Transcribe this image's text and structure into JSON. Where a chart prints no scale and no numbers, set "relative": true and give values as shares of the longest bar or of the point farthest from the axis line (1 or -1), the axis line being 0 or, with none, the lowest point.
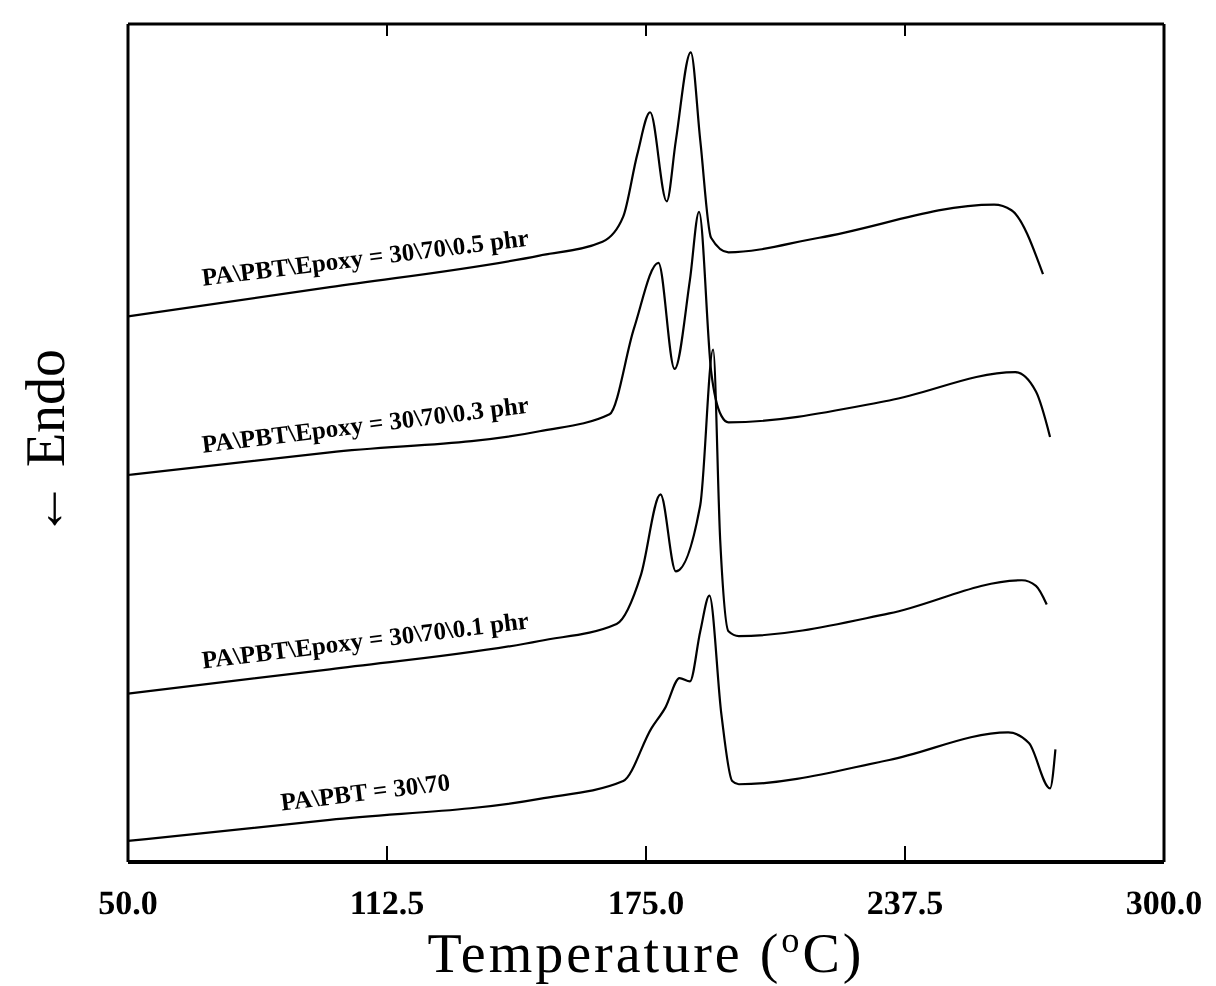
{
  "chart_data": {
    "type": "line",
    "relative": true,
    "xlabel": "Temperature ($^{o}$C)",
    "ylabel": "← Endo",
    "xlim": [
      50,
      300
    ],
    "xticks": [
      {
        "value": 50,
        "label": "50.0"
      },
      {
        "value": 112.5,
        "label": "112.5"
      },
      {
        "value": 175,
        "label": "175.0"
      },
      {
        "value": 237.5,
        "label": "237.5"
      },
      {
        "value": 300,
        "label": "300.0"
      }
    ],
    "grid": false,
    "marker": "none",
    "line_style": "solid",
    "series": [
      {
        "name": "PA\\PBT\\Epoxy = 30\\70\\0.5 phr",
        "color": "#000000",
        "x": [
          50,
          98.7,
          149.3,
          164.5,
          169.5,
          172.9,
          176,
          180,
          182.2,
          185.8,
          188.1,
          190.7,
          194.9,
          216.8,
          259,
          263.2,
          270.8
        ],
        "values": [
          0.674,
          0.71,
          0.749,
          0.766,
          0.797,
          0.874,
          0.926,
          0.816,
          0.891,
          1.0,
          0.891,
          0.771,
          0.753,
          0.771,
          0.812,
          0.805,
          0.726
        ]
      },
      {
        "name": "PA\\PBT\\Epoxy = 30\\70\\0.3 phr",
        "color": "#000000",
        "x": [
          50,
          98.7,
          149.3,
          166.2,
          172.1,
          178,
          181.9,
          185.6,
          187.8,
          190.7,
          193.2,
          194.9,
          233.7,
          264.1,
          269.1,
          272.5
        ],
        "values": [
          0.478,
          0.506,
          0.532,
          0.553,
          0.659,
          0.74,
          0.609,
          0.719,
          0.803,
          0.607,
          0.551,
          0.543,
          0.57,
          0.605,
          0.581,
          0.525
        ]
      },
      {
        "name": "PA\\PBT\\Epoxy = 30\\70\\0.1 phr",
        "color": "#000000",
        "x": [
          50,
          98.7,
          149.3,
          167.9,
          173.8,
          178.5,
          182.2,
          188.1,
          191.2,
          192.9,
          194.9,
          197.4,
          233.7,
          265.7,
          269.1,
          271.7
        ],
        "values": [
          0.208,
          0.238,
          0.273,
          0.294,
          0.355,
          0.454,
          0.359,
          0.441,
          0.633,
          0.398,
          0.285,
          0.279,
          0.307,
          0.348,
          0.341,
          0.318
        ]
      },
      {
        "name": "PA\\PBT = 30\\70",
        "color": "#000000",
        "x": [
          50,
          98.7,
          149.3,
          169.5,
          176.3,
          179.7,
          183.1,
          185.6,
          188.1,
          190.3,
          193.2,
          195.8,
          197.4,
          233.7,
          262.4,
          267.4,
          272.5,
          273.8
        ],
        "values": [
          0.026,
          0.052,
          0.078,
          0.1,
          0.165,
          0.191,
          0.227,
          0.223,
          0.285,
          0.329,
          0.182,
          0.1,
          0.096,
          0.126,
          0.16,
          0.147,
          0.091,
          0.139
        ]
      }
    ]
  }
}
